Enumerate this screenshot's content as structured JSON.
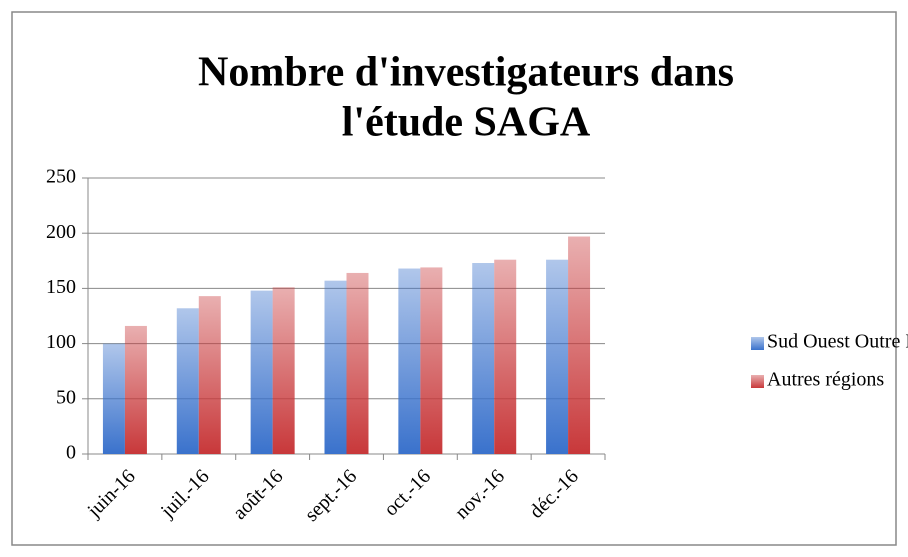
{
  "chart_data": {
    "type": "bar",
    "title": [
      "Nombre d'investigateurs dans",
      "l'étude SAGA"
    ],
    "categories": [
      "juin-16",
      "juil.-16",
      "août-16",
      "sept.-16",
      "oct.-16",
      "nov.-16",
      "déc.-16"
    ],
    "series": [
      {
        "name": "Sud Ouest Outre Mer",
        "color": "#3a72cc",
        "values": [
          100,
          132,
          148,
          157,
          168,
          173,
          176
        ]
      },
      {
        "name": "Autres régions",
        "color": "#c8383a",
        "values": [
          116,
          143,
          151,
          164,
          169,
          176,
          197
        ]
      }
    ],
    "ylim": [
      0,
      250
    ],
    "yticks": [
      0,
      50,
      100,
      150,
      200,
      250
    ],
    "grid": true,
    "legend": "right"
  }
}
